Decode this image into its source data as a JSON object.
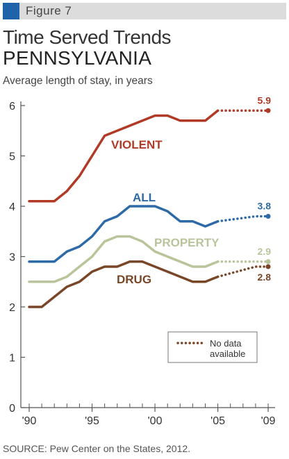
{
  "figure_label": "Figure 7",
  "chart_data": {
    "type": "line",
    "title": "Time Served Trends",
    "subtitle": "PENNSYLVANIA",
    "ylabel": "Average length of stay, in years",
    "ylim": [
      0,
      6
    ],
    "yticks": [
      "0",
      "1",
      "2",
      "3",
      "4",
      "5",
      "6"
    ],
    "xlim": [
      1990,
      2009
    ],
    "xticks": [
      {
        "value": 1990,
        "label": "'90"
      },
      {
        "value": 1995,
        "label": "'95"
      },
      {
        "value": 2000,
        "label": "'00"
      },
      {
        "value": 2005,
        "label": "'05"
      },
      {
        "value": 2009,
        "label": "'09"
      }
    ],
    "series": [
      {
        "name": "VIOLENT",
        "color": "#b03a26",
        "x": [
          1990,
          1991,
          1992,
          1993,
          1994,
          1995,
          1996,
          1997,
          1998,
          1999,
          2000,
          2001,
          2002,
          2003,
          2004,
          2005
        ],
        "values": [
          4.1,
          4.1,
          4.1,
          4.3,
          4.6,
          5.0,
          5.4,
          5.5,
          5.6,
          5.7,
          5.8,
          5.8,
          5.7,
          5.7,
          5.7,
          5.9
        ],
        "projected": {
          "x": [
            2005,
            2009
          ],
          "values": [
            5.9,
            5.9
          ]
        },
        "end_label": "5.9"
      },
      {
        "name": "ALL",
        "color": "#2e6aa8",
        "x": [
          1990,
          1991,
          1992,
          1993,
          1994,
          1995,
          1996,
          1997,
          1998,
          1999,
          2000,
          2001,
          2002,
          2003,
          2004,
          2005
        ],
        "values": [
          2.9,
          2.9,
          2.9,
          3.1,
          3.2,
          3.4,
          3.7,
          3.8,
          4.0,
          4.0,
          4.0,
          3.9,
          3.7,
          3.7,
          3.6,
          3.7
        ],
        "projected": {
          "x": [
            2005,
            2008,
            2009
          ],
          "values": [
            3.7,
            3.8,
            3.8
          ]
        },
        "end_label": "3.8"
      },
      {
        "name": "PROPERTY",
        "color": "#b8c49a",
        "x": [
          1990,
          1991,
          1992,
          1993,
          1994,
          1995,
          1996,
          1997,
          1998,
          1999,
          2000,
          2001,
          2002,
          2003,
          2004,
          2005
        ],
        "values": [
          2.5,
          2.5,
          2.5,
          2.6,
          2.8,
          3.0,
          3.3,
          3.4,
          3.4,
          3.3,
          3.1,
          3.0,
          2.9,
          2.8,
          2.8,
          2.9
        ],
        "projected": {
          "x": [
            2005,
            2009
          ],
          "values": [
            2.9,
            2.9
          ]
        },
        "end_label": "2.9"
      },
      {
        "name": "DRUG",
        "color": "#7a4628",
        "x": [
          1990,
          1991,
          1992,
          1993,
          1994,
          1995,
          1996,
          1997,
          1998,
          1999,
          2000,
          2001,
          2002,
          2003,
          2004,
          2005
        ],
        "values": [
          2.0,
          2.0,
          2.2,
          2.4,
          2.5,
          2.7,
          2.8,
          2.8,
          2.9,
          2.9,
          2.8,
          2.7,
          2.6,
          2.5,
          2.5,
          2.6
        ],
        "projected": {
          "x": [
            2005,
            2008,
            2009
          ],
          "values": [
            2.6,
            2.8,
            2.8
          ]
        },
        "end_label": "2.8"
      }
    ],
    "legend": {
      "text_line1": "No data",
      "text_line2": "available"
    },
    "grid": false
  },
  "source": "SOURCE: Pew Center on the States, 2012."
}
